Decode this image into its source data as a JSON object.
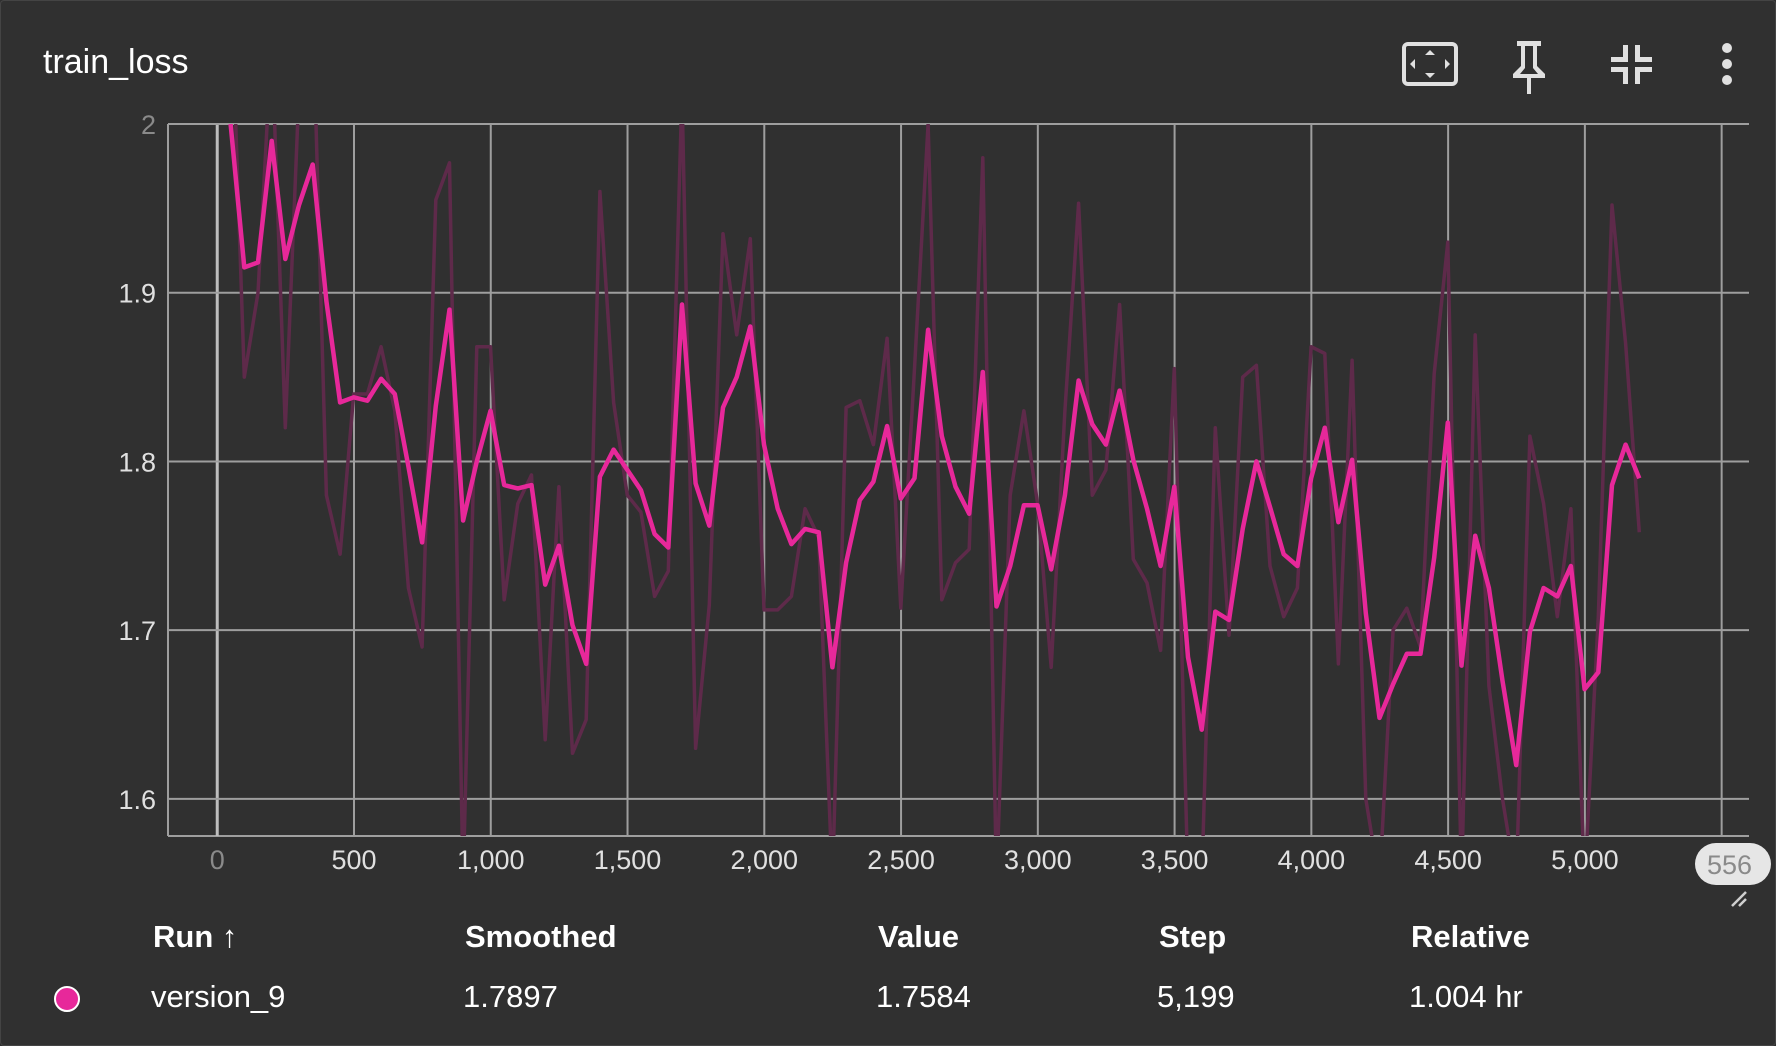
{
  "card": {
    "title": "train_loss"
  },
  "toolbar": {
    "icons": [
      "fit-domain-icon",
      "pin-icon",
      "collapse-icon",
      "more-vert-icon"
    ]
  },
  "colors": {
    "background": "#303030",
    "smoothed": "#e7289a",
    "raw": "#5e2a4a",
    "grid": "#9e9e9e",
    "axis_text": "#e0e0e0"
  },
  "chart_data": {
    "type": "line",
    "xlim": [
      -180,
      5600
    ],
    "ylim": [
      1.578,
      2.0
    ],
    "x_ticks": [
      "0",
      "500",
      "1,000",
      "1,500",
      "2,000",
      "2,500",
      "3,000",
      "3,500",
      "4,000",
      "4,500",
      "5,000"
    ],
    "x_tick_values": [
      0,
      500,
      1000,
      1500,
      2000,
      2500,
      3000,
      3500,
      4000,
      4500,
      5000
    ],
    "y_ticks": [
      "1.6",
      "1.7",
      "1.8",
      "1.9",
      "2"
    ],
    "y_tick_values": [
      1.6,
      1.7,
      1.8,
      1.9,
      2.0
    ],
    "x_end_label": "556",
    "grid": true,
    "series": [
      {
        "name": "version_9",
        "x": [
          49,
          99,
          149,
          199,
          249,
          299,
          349,
          399,
          449,
          499,
          549,
          599,
          649,
          699,
          749,
          799,
          849,
          899,
          949,
          999,
          1049,
          1099,
          1149,
          1199,
          1249,
          1299,
          1349,
          1399,
          1449,
          1499,
          1549,
          1599,
          1649,
          1699,
          1749,
          1799,
          1849,
          1899,
          1949,
          1999,
          2049,
          2099,
          2149,
          2199,
          2249,
          2299,
          2349,
          2399,
          2449,
          2499,
          2549,
          2599,
          2649,
          2699,
          2749,
          2799,
          2849,
          2899,
          2949,
          2999,
          3049,
          3099,
          3149,
          3199,
          3249,
          3299,
          3349,
          3399,
          3449,
          3499,
          3549,
          3599,
          3649,
          3699,
          3749,
          3799,
          3849,
          3899,
          3949,
          3999,
          4049,
          4099,
          4149,
          4199,
          4249,
          4299,
          4349,
          4399,
          4449,
          4499,
          4549,
          4599,
          4649,
          4699,
          4749,
          4799,
          4849,
          4899,
          4949,
          4999,
          5049,
          5099,
          5149,
          5199
        ],
        "smoothed": [
          2.0,
          1.915,
          1.918,
          1.99,
          1.92,
          1.952,
          1.976,
          1.895,
          1.835,
          1.838,
          1.836,
          1.849,
          1.84,
          1.797,
          1.752,
          1.833,
          1.89,
          1.765,
          1.8,
          1.83,
          1.786,
          1.784,
          1.786,
          1.727,
          1.75,
          1.703,
          1.68,
          1.791,
          1.807,
          1.795,
          1.783,
          1.757,
          1.749,
          1.893,
          1.787,
          1.762,
          1.832,
          1.85,
          1.88,
          1.81,
          1.772,
          1.751,
          1.76,
          1.758,
          1.678,
          1.74,
          1.777,
          1.788,
          1.821,
          1.778,
          1.79,
          1.878,
          1.815,
          1.785,
          1.769,
          1.853,
          1.714,
          1.738,
          1.774,
          1.774,
          1.736,
          1.78,
          1.848,
          1.822,
          1.81,
          1.842,
          1.801,
          1.772,
          1.738,
          1.785,
          1.684,
          1.641,
          1.711,
          1.706,
          1.76,
          1.8,
          1.773,
          1.745,
          1.738,
          1.79,
          1.82,
          1.764,
          1.801,
          1.71,
          1.648,
          1.668,
          1.686,
          1.686,
          1.743,
          1.823,
          1.679,
          1.756,
          1.725,
          1.67,
          1.62,
          1.699,
          1.725,
          1.72,
          1.738,
          1.665,
          1.675,
          1.786,
          1.81,
          1.79
        ],
        "raw": [
          2.09,
          1.85,
          1.9,
          2.05,
          1.82,
          2.02,
          2.07,
          1.78,
          1.745,
          1.84,
          1.84,
          1.868,
          1.83,
          1.725,
          1.69,
          1.955,
          1.977,
          1.55,
          1.868,
          1.868,
          1.718,
          1.775,
          1.792,
          1.635,
          1.785,
          1.627,
          1.647,
          1.96,
          1.835,
          1.78,
          1.77,
          1.72,
          1.735,
          2.02,
          1.63,
          1.715,
          1.935,
          1.875,
          1.932,
          1.712,
          1.712,
          1.72,
          1.772,
          1.755,
          1.55,
          1.832,
          1.836,
          1.81,
          1.873,
          1.713,
          1.855,
          2.0,
          1.718,
          1.74,
          1.748,
          1.98,
          1.55,
          1.78,
          1.83,
          1.775,
          1.678,
          1.83,
          1.953,
          1.78,
          1.795,
          1.893,
          1.742,
          1.728,
          1.688,
          1.855,
          1.55,
          1.55,
          1.82,
          1.697,
          1.85,
          1.857,
          1.738,
          1.708,
          1.725,
          1.868,
          1.864,
          1.68,
          1.86,
          1.6,
          1.55,
          1.7,
          1.713,
          1.69,
          1.852,
          1.93,
          1.55,
          1.875,
          1.667,
          1.6,
          1.55,
          1.815,
          1.775,
          1.708,
          1.772,
          1.55,
          1.708,
          1.952,
          1.87,
          1.758
        ]
      }
    ]
  },
  "table": {
    "headers": {
      "run": "Run",
      "run_sort_icon": "↑",
      "smoothed": "Smoothed",
      "value": "Value",
      "step": "Step",
      "relative": "Relative"
    },
    "rows": [
      {
        "run": "version_9",
        "smoothed": "1.7897",
        "value": "1.7584",
        "step": "5,199",
        "relative": "1.004 hr",
        "color": "#e7289a"
      }
    ]
  }
}
